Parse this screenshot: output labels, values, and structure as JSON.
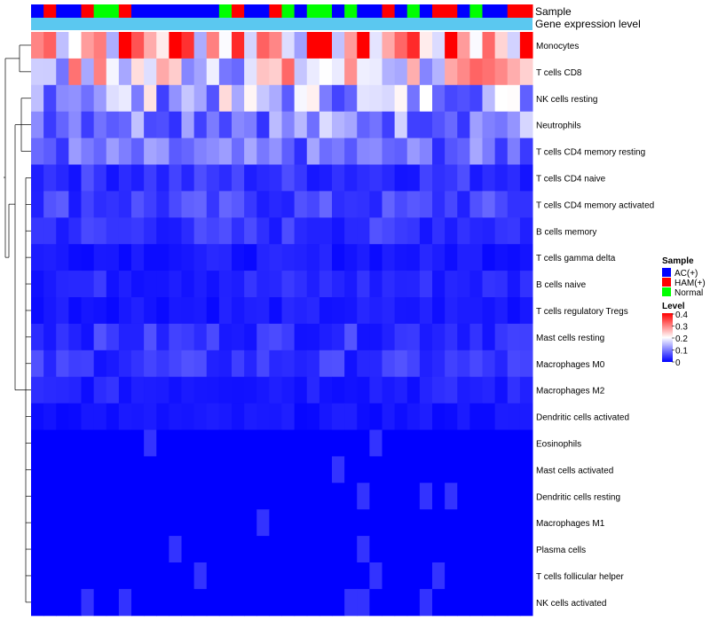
{
  "chart_data": {
    "type": "heatmap",
    "title": "",
    "annotation_tracks": [
      "Sample",
      "Gene expression level"
    ],
    "sample_groups": [
      "AC",
      "HAM",
      "AC",
      "AC",
      "HAM",
      "Normal",
      "Normal",
      "HAM",
      "AC",
      "AC",
      "AC",
      "AC",
      "AC",
      "AC",
      "AC",
      "Normal",
      "HAM",
      "AC",
      "AC",
      "HAM",
      "Normal",
      "AC",
      "Normal",
      "Normal",
      "AC",
      "Normal",
      "AC",
      "AC",
      "HAM",
      "AC",
      "Normal",
      "AC",
      "HAM",
      "HAM",
      "AC",
      "Normal",
      "AC",
      "AC",
      "HAM",
      "HAM"
    ],
    "group_colors": {
      "AC": "#0000ff",
      "HAM": "#ff0000",
      "Normal": "#00ff00"
    },
    "expression_track_color": "#5bc8f0",
    "rows": [
      "Monocytes",
      "T cells CD8",
      "NK cells resting",
      "Neutrophils",
      "T cells CD4 memory resting",
      "T cells CD4 naive",
      "T cells CD4 memory activated",
      "B cells memory",
      "T cells gamma delta",
      "B cells naive",
      "T cells regulatory  Tregs",
      "Mast cells resting",
      "Macrophages M0",
      "Macrophages M2",
      "Dendritic cells activated",
      "Eosinophils",
      "Mast cells activated",
      "Dendritic cells resting",
      "Macrophages M1",
      "Plasma cells",
      "T cells follicular helper",
      "NK cells activated"
    ],
    "row_baselines": [
      0.3,
      0.2,
      0.14,
      0.11,
      0.08,
      0.04,
      0.05,
      0.04,
      0.02,
      0.03,
      0.02,
      0.04,
      0.04,
      0.025,
      0.015,
      0.0,
      0.0,
      0.0,
      0.0,
      0.0,
      0.0,
      0.0
    ],
    "legend": {
      "sample_title": "Sample",
      "sample_entries": [
        {
          "label": "AC(+)",
          "color": "#0000ff"
        },
        {
          "label": "HAM(+)",
          "color": "#ff0000"
        },
        {
          "label": "Normal",
          "color": "#00ff00"
        }
      ],
      "level_title": "Level",
      "level_ticks": [
        "0.4",
        "0.3",
        "0.2",
        "0.1",
        "0"
      ],
      "placement": "right"
    },
    "color_scale": {
      "min": 0,
      "mid": 0.2,
      "max": 0.4,
      "low": "#0000ff",
      "midcolor": "#ffffff",
      "high": "#ff0000"
    }
  }
}
